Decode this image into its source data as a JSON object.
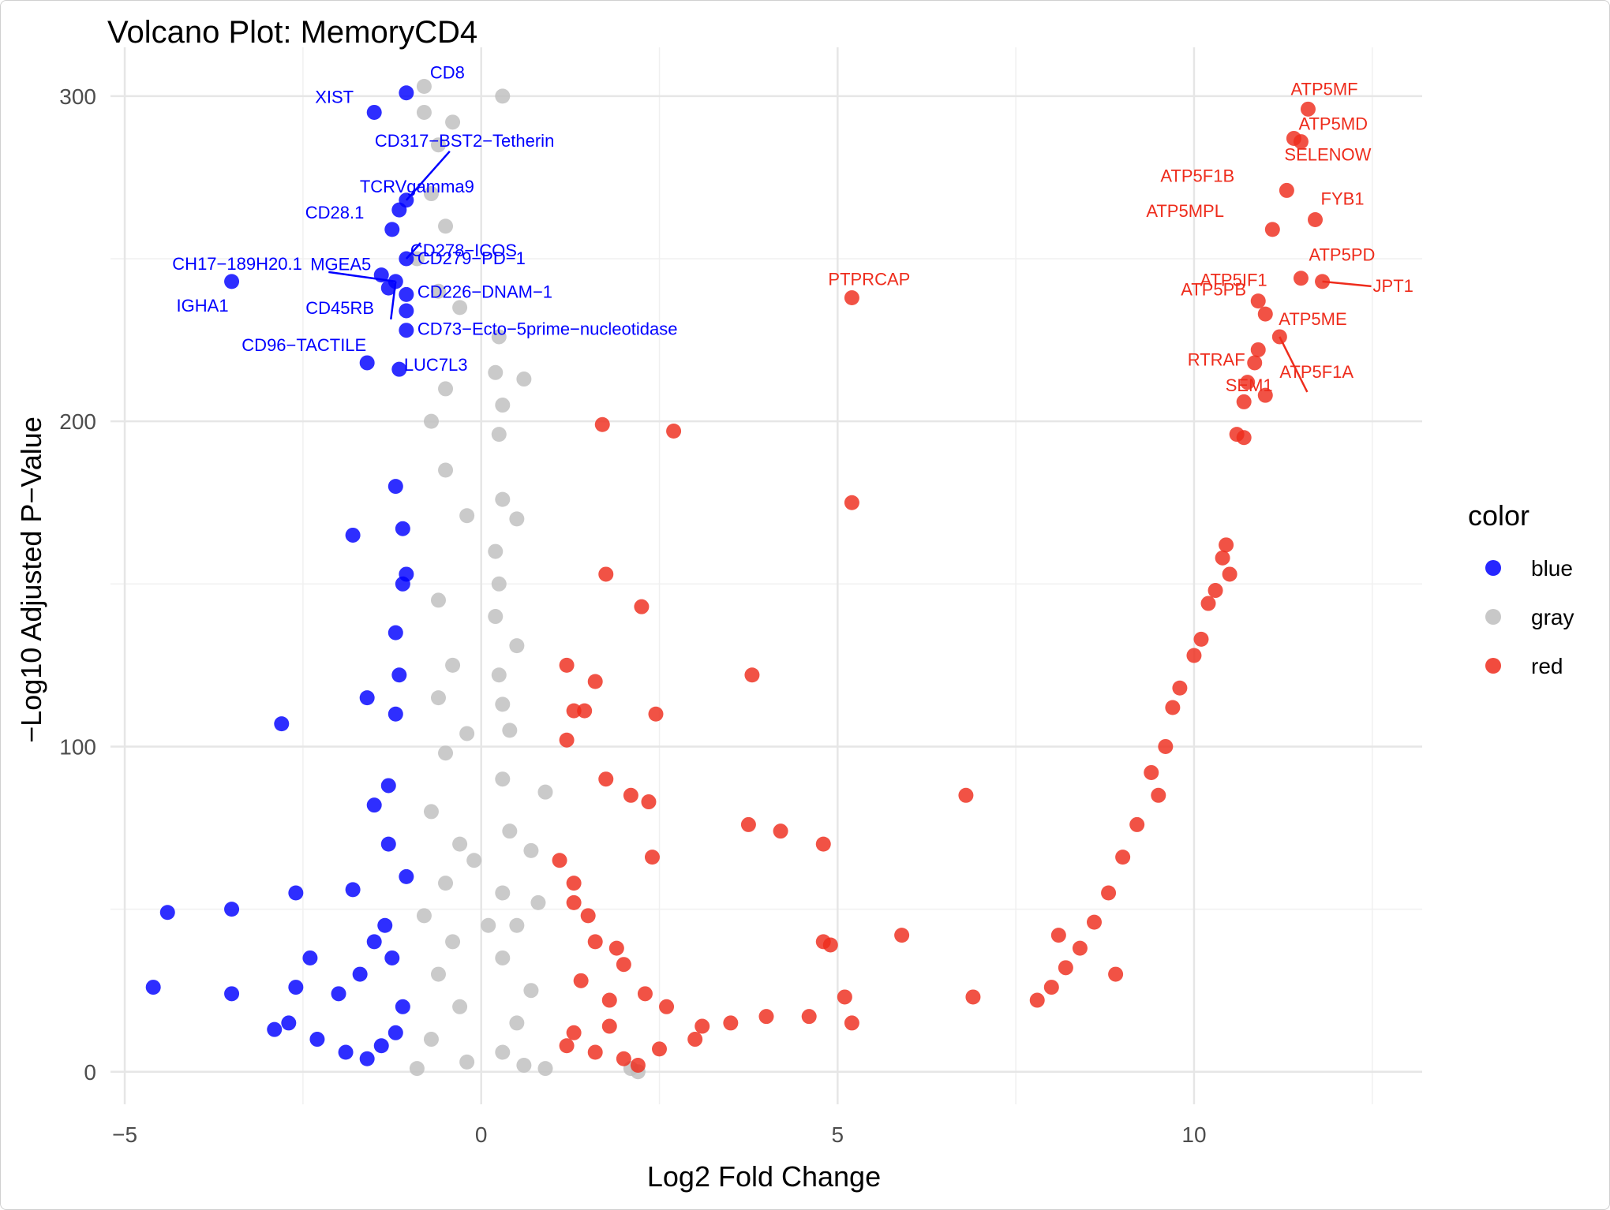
{
  "chart_data": {
    "type": "scatter",
    "title": "Volcano Plot: MemoryCD4",
    "xlabel": "Log2 Fold Change",
    "ylabel": "−Log10 Adjusted P−Value",
    "xlim": [
      -5.2,
      13.2
    ],
    "ylim": [
      -10,
      315
    ],
    "x_ticks": [
      -5,
      0,
      5,
      10
    ],
    "x_tick_labels": [
      "−5",
      "0",
      "5",
      "10"
    ],
    "y_ticks": [
      0,
      100,
      200,
      300
    ],
    "y_tick_labels": [
      "0",
      "100",
      "200",
      "300"
    ],
    "grid": true,
    "legend": {
      "title": "color",
      "position": "right",
      "entries": [
        {
          "label": "blue",
          "color": "#0000ff"
        },
        {
          "label": "gray",
          "color": "#bebebe"
        },
        {
          "label": "red",
          "color": "#ee2c1c"
        }
      ]
    },
    "colors": {
      "blue": "#0000ff",
      "gray": "#bebebe",
      "red": "#ee2c1c"
    },
    "series": [
      {
        "name": "blue",
        "points": [
          [
            -1.05,
            301
          ],
          [
            -1.5,
            295
          ],
          [
            -1.05,
            268
          ],
          [
            -1.15,
            265
          ],
          [
            -1.25,
            259
          ],
          [
            -1.05,
            250
          ],
          [
            -1.4,
            245
          ],
          [
            -3.5,
            243
          ],
          [
            -1.2,
            243
          ],
          [
            -1.3,
            241
          ],
          [
            -1.05,
            239
          ],
          [
            -1.05,
            234
          ],
          [
            -1.05,
            228
          ],
          [
            -1.6,
            218
          ],
          [
            -1.15,
            216
          ],
          [
            -1.2,
            180
          ],
          [
            -1.1,
            167
          ],
          [
            -1.8,
            165
          ],
          [
            -1.05,
            153
          ],
          [
            -1.1,
            150
          ],
          [
            -1.2,
            135
          ],
          [
            -1.15,
            122
          ],
          [
            -1.2,
            110
          ],
          [
            -1.6,
            115
          ],
          [
            -2.8,
            107
          ],
          [
            -1.3,
            88
          ],
          [
            -1.5,
            82
          ],
          [
            -1.8,
            56
          ],
          [
            -2.6,
            55
          ],
          [
            -4.4,
            49
          ],
          [
            -3.5,
            50
          ],
          [
            -2.4,
            35
          ],
          [
            -2.6,
            26
          ],
          [
            -4.6,
            26
          ],
          [
            -3.5,
            24
          ],
          [
            -2.7,
            15
          ],
          [
            -2.9,
            13
          ],
          [
            -2.3,
            10
          ],
          [
            -2.0,
            24
          ],
          [
            -1.7,
            30
          ],
          [
            -1.5,
            40
          ],
          [
            -1.35,
            45
          ],
          [
            -1.25,
            35
          ],
          [
            -1.1,
            20
          ],
          [
            -1.4,
            8
          ],
          [
            -1.9,
            6
          ],
          [
            -1.6,
            4
          ],
          [
            -1.2,
            12
          ],
          [
            -1.05,
            60
          ],
          [
            -1.3,
            70
          ]
        ]
      },
      {
        "name": "gray",
        "points": [
          [
            -0.8,
            303
          ],
          [
            -0.8,
            295
          ],
          [
            -0.4,
            292
          ],
          [
            0.3,
            300
          ],
          [
            -0.6,
            285
          ],
          [
            -0.7,
            270
          ],
          [
            -0.5,
            260
          ],
          [
            -0.9,
            250
          ],
          [
            -0.6,
            240
          ],
          [
            -0.3,
            235
          ],
          [
            0.25,
            226
          ],
          [
            0.2,
            215
          ],
          [
            0.6,
            213
          ],
          [
            -0.5,
            210
          ],
          [
            0.3,
            205
          ],
          [
            -0.7,
            200
          ],
          [
            0.25,
            196
          ],
          [
            -0.5,
            185
          ],
          [
            0.3,
            176
          ],
          [
            -0.2,
            171
          ],
          [
            0.5,
            170
          ],
          [
            0.2,
            160
          ],
          [
            0.25,
            150
          ],
          [
            -0.6,
            145
          ],
          [
            0.2,
            140
          ],
          [
            0.5,
            131
          ],
          [
            -0.4,
            125
          ],
          [
            0.25,
            122
          ],
          [
            -0.6,
            115
          ],
          [
            0.3,
            113
          ],
          [
            -0.2,
            104
          ],
          [
            0.4,
            105
          ],
          [
            -0.5,
            98
          ],
          [
            0.3,
            90
          ],
          [
            0.9,
            86
          ],
          [
            -0.7,
            80
          ],
          [
            0.4,
            74
          ],
          [
            -0.3,
            70
          ],
          [
            0.7,
            68
          ],
          [
            -0.5,
            58
          ],
          [
            0.3,
            55
          ],
          [
            0.8,
            52
          ],
          [
            -0.8,
            48
          ],
          [
            0.5,
            45
          ],
          [
            -0.4,
            40
          ],
          [
            0.3,
            35
          ],
          [
            -0.6,
            30
          ],
          [
            0.7,
            25
          ],
          [
            -0.3,
            20
          ],
          [
            0.5,
            15
          ],
          [
            -0.7,
            10
          ],
          [
            0.3,
            6
          ],
          [
            -0.2,
            3
          ],
          [
            0.6,
            2
          ],
          [
            2.1,
            1
          ],
          [
            2.2,
            0
          ],
          [
            -0.9,
            1
          ],
          [
            0.9,
            1
          ],
          [
            -0.1,
            65
          ],
          [
            0.1,
            45
          ]
        ]
      },
      {
        "name": "red",
        "points": [
          [
            11.6,
            296
          ],
          [
            11.4,
            287
          ],
          [
            11.5,
            286
          ],
          [
            11.3,
            271
          ],
          [
            11.7,
            262
          ],
          [
            11.1,
            259
          ],
          [
            11.5,
            244
          ],
          [
            11.8,
            243
          ],
          [
            10.9,
            237
          ],
          [
            11.0,
            233
          ],
          [
            11.2,
            226
          ],
          [
            10.9,
            222
          ],
          [
            10.85,
            218
          ],
          [
            11.0,
            208
          ],
          [
            10.7,
            206
          ],
          [
            10.75,
            212
          ],
          [
            10.6,
            196
          ],
          [
            10.7,
            195
          ],
          [
            10.45,
            162
          ],
          [
            10.4,
            158
          ],
          [
            10.5,
            153
          ],
          [
            10.2,
            144
          ],
          [
            10.3,
            148
          ],
          [
            10.1,
            133
          ],
          [
            10.0,
            128
          ],
          [
            9.8,
            118
          ],
          [
            9.7,
            112
          ],
          [
            9.6,
            100
          ],
          [
            9.4,
            92
          ],
          [
            9.2,
            76
          ],
          [
            9.0,
            66
          ],
          [
            8.8,
            55
          ],
          [
            8.6,
            46
          ],
          [
            8.4,
            38
          ],
          [
            8.2,
            32
          ],
          [
            8.0,
            26
          ],
          [
            7.8,
            22
          ],
          [
            8.1,
            42
          ],
          [
            8.9,
            30
          ],
          [
            9.5,
            85
          ],
          [
            5.2,
            238
          ],
          [
            2.7,
            197
          ],
          [
            1.7,
            199
          ],
          [
            5.2,
            175
          ],
          [
            1.75,
            153
          ],
          [
            2.25,
            143
          ],
          [
            1.2,
            125
          ],
          [
            1.6,
            120
          ],
          [
            3.8,
            122
          ],
          [
            1.3,
            111
          ],
          [
            1.45,
            111
          ],
          [
            2.45,
            110
          ],
          [
            1.2,
            102
          ],
          [
            1.75,
            90
          ],
          [
            2.1,
            85
          ],
          [
            2.35,
            83
          ],
          [
            3.75,
            76
          ],
          [
            4.2,
            74
          ],
          [
            4.8,
            70
          ],
          [
            6.8,
            85
          ],
          [
            1.1,
            65
          ],
          [
            2.4,
            66
          ],
          [
            1.3,
            58
          ],
          [
            1.3,
            52
          ],
          [
            1.5,
            48
          ],
          [
            1.6,
            40
          ],
          [
            1.9,
            38
          ],
          [
            2.0,
            33
          ],
          [
            1.4,
            28
          ],
          [
            1.8,
            22
          ],
          [
            2.3,
            24
          ],
          [
            2.6,
            20
          ],
          [
            3.1,
            14
          ],
          [
            3.5,
            15
          ],
          [
            4.0,
            17
          ],
          [
            4.6,
            17
          ],
          [
            4.8,
            40
          ],
          [
            4.9,
            39
          ],
          [
            5.9,
            42
          ],
          [
            5.1,
            23
          ],
          [
            6.9,
            23
          ],
          [
            5.2,
            15
          ],
          [
            1.2,
            8
          ],
          [
            1.6,
            6
          ],
          [
            2.0,
            4
          ],
          [
            2.5,
            7
          ],
          [
            3.0,
            10
          ],
          [
            1.3,
            12
          ],
          [
            1.8,
            14
          ],
          [
            2.2,
            2
          ]
        ]
      }
    ],
    "labels": [
      {
        "text": "XIST",
        "x": -1.5,
        "y": 295,
        "color": "blue"
      },
      {
        "text": "CD8",
        "x": -1.05,
        "y": 301,
        "color": "blue"
      },
      {
        "text": "CD317−BST2−Tetherin",
        "x": -1.05,
        "y": 268,
        "color": "blue"
      },
      {
        "text": "TCRVgamma9",
        "x": -1.15,
        "y": 265,
        "color": "blue"
      },
      {
        "text": "CD28.1",
        "x": -1.25,
        "y": 259,
        "color": "blue"
      },
      {
        "text": "CD278−ICOS",
        "x": -1.05,
        "y": 250,
        "color": "blue"
      },
      {
        "text": "MGEA5",
        "x": -1.4,
        "y": 245,
        "color": "blue"
      },
      {
        "text": "CH17−189H20.1",
        "x": -1.2,
        "y": 243,
        "color": "blue"
      },
      {
        "text": "CD279−PD−1",
        "x": -1.05,
        "y": 250,
        "color": "blue"
      },
      {
        "text": "IGHA1",
        "x": -3.5,
        "y": 243,
        "color": "blue"
      },
      {
        "text": "CD45RB",
        "x": -1.3,
        "y": 241,
        "color": "blue"
      },
      {
        "text": "CD226−DNAM−1",
        "x": -1.05,
        "y": 239,
        "color": "blue"
      },
      {
        "text": "CD96−TACTILE",
        "x": -1.2,
        "y": 243,
        "color": "blue"
      },
      {
        "text": "CD73−Ecto−5prime−nucleotidase",
        "x": -1.05,
        "y": 228,
        "color": "blue"
      },
      {
        "text": "LUC7L3",
        "x": -1.15,
        "y": 216,
        "color": "blue"
      },
      {
        "text": "PTPRCAP",
        "x": 5.2,
        "y": 238,
        "color": "red"
      },
      {
        "text": "ATP5MF",
        "x": 11.6,
        "y": 296,
        "color": "red"
      },
      {
        "text": "ATP5MD",
        "x": 11.5,
        "y": 286,
        "color": "red"
      },
      {
        "text": "SELENOW",
        "x": 11.4,
        "y": 287,
        "color": "red"
      },
      {
        "text": "ATP5F1B",
        "x": 11.3,
        "y": 271,
        "color": "red"
      },
      {
        "text": "FYB1",
        "x": 11.7,
        "y": 262,
        "color": "red"
      },
      {
        "text": "ATP5MPL",
        "x": 11.1,
        "y": 259,
        "color": "red"
      },
      {
        "text": "ATP5PD",
        "x": 11.5,
        "y": 244,
        "color": "red"
      },
      {
        "text": "ATP5IF1",
        "x": 11.5,
        "y": 244,
        "color": "red"
      },
      {
        "text": "JPT1",
        "x": 11.8,
        "y": 243,
        "color": "red"
      },
      {
        "text": "ATP5PB",
        "x": 10.9,
        "y": 237,
        "color": "red"
      },
      {
        "text": "ATP5ME",
        "x": 11.0,
        "y": 233,
        "color": "red"
      },
      {
        "text": "RTRAF",
        "x": 10.85,
        "y": 222,
        "color": "red"
      },
      {
        "text": "ATP5F1A",
        "x": 11.2,
        "y": 226,
        "color": "red"
      },
      {
        "text": "SEM1",
        "x": 10.85,
        "y": 218,
        "color": "red"
      }
    ]
  }
}
